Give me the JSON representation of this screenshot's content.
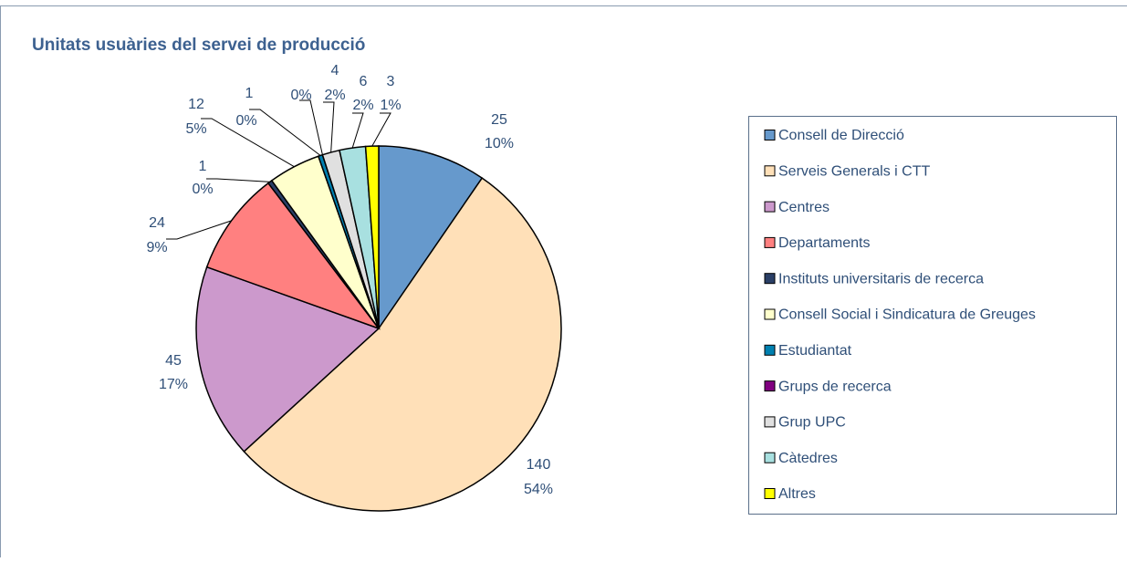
{
  "chart_data": {
    "type": "pie",
    "title": "Unitats usuàries del servei de producció",
    "categories": [
      "Consell de Direcció",
      "Serveis Generals i CTT",
      "Centres",
      "Departaments",
      "Instituts universitaris de recerca",
      "Consell Social i Sindicatura de Greuges",
      "Estudiantat",
      "Grups de recerca",
      "Grup UPC",
      "Càtedres",
      "Altres"
    ],
    "values": [
      25,
      140,
      45,
      24,
      1,
      12,
      1,
      0,
      4,
      6,
      3
    ],
    "value_labels": [
      "25",
      "140",
      "45",
      "24",
      "1",
      "12",
      "1",
      null,
      "4",
      "6",
      "3"
    ],
    "percent_labels": [
      "10%",
      "54%",
      "17%",
      "9%",
      "0%",
      "5%",
      "0%",
      "0%",
      "2%",
      "2%",
      "1%"
    ],
    "colors": [
      "#6699cc",
      "#ffe0b8",
      "#cc99cc",
      "#ff8080",
      "#2a3f66",
      "#ffffcc",
      "#0080b0",
      "#800080",
      "#e0e0e0",
      "#a8e0e0",
      "#ffff00"
    ],
    "legend": "right"
  }
}
